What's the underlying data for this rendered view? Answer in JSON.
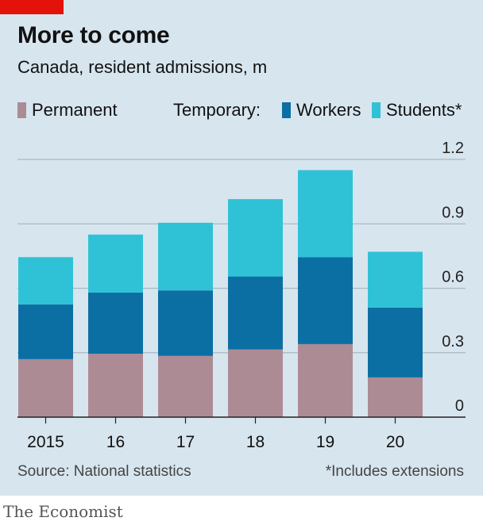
{
  "header": {
    "title": "More to come",
    "subtitle": "Canada, resident admissions, m"
  },
  "legend": {
    "permanent": "Permanent",
    "temporary": "Temporary:",
    "workers": "Workers",
    "students": "Students*"
  },
  "footer": {
    "source": "Source: National statistics",
    "note": "*Includes extensions",
    "brand": "The Economist"
  },
  "colors": {
    "accent": "#e3120b",
    "permanent": "#ad8b95",
    "workers": "#0b6fa3",
    "students": "#2fc2d6",
    "background": "#d7e5ee",
    "grid": "#a9b9c4"
  },
  "chart_data": {
    "type": "bar",
    "stacked": true,
    "categories": [
      "2015",
      "16",
      "17",
      "18",
      "19",
      "20"
    ],
    "series": [
      {
        "name": "Permanent",
        "values": [
          0.27,
          0.295,
          0.285,
          0.315,
          0.34,
          0.185
        ]
      },
      {
        "name": "Workers",
        "values": [
          0.255,
          0.285,
          0.305,
          0.34,
          0.405,
          0.325
        ]
      },
      {
        "name": "Students*",
        "values": [
          0.22,
          0.27,
          0.315,
          0.36,
          0.405,
          0.26
        ]
      }
    ],
    "yticks": [
      "0",
      "0.3",
      "0.6",
      "0.9",
      "1.2"
    ],
    "ylim": [
      0,
      1.2
    ],
    "y_axis_side": "right",
    "grid": true
  }
}
